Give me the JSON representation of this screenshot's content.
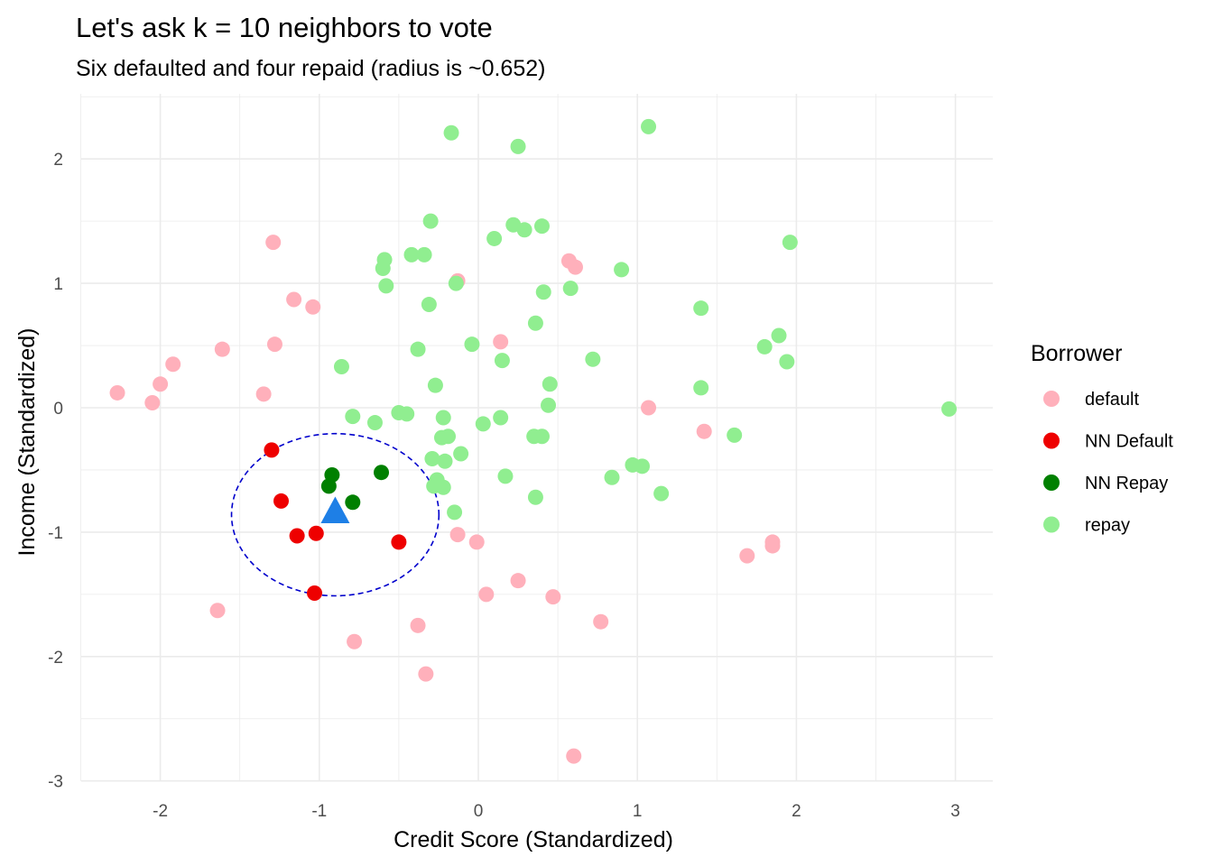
{
  "chart_data": {
    "type": "scatter",
    "title": "Let's ask k = 10 neighbors to vote",
    "subtitle": "Six defaulted and four repaid (radius is ~0.652)",
    "xlabel": "Credit Score (Standardized)",
    "ylabel": "Income (Standardized)",
    "xlim": [
      -2.5,
      3.2
    ],
    "ylim": [
      -3.05,
      2.5
    ],
    "x_ticks": [
      -2,
      -1,
      0,
      1,
      2,
      3
    ],
    "y_ticks": [
      -3,
      -2,
      -1,
      0,
      1,
      2
    ],
    "x_tick_labels": [
      "-2",
      "-1",
      "0",
      "1",
      "2",
      "3"
    ],
    "y_tick_labels": [
      "-3",
      "-2",
      "-1",
      "0",
      "1",
      "2"
    ],
    "grid": true,
    "legend": {
      "title": "Borrower",
      "placement": "right",
      "entries": [
        "default",
        "NN Default",
        "NN Repay",
        "repay"
      ]
    },
    "colors": {
      "default": "#ffb0bb",
      "NN Default": "#ee0000",
      "NN Repay": "#008000",
      "repay": "#90ee90",
      "query": "#1e7fe6",
      "circle": "#0000cc",
      "grid": "#ebebeb"
    },
    "query_point": {
      "x": -0.9,
      "y": -0.83,
      "shape": "triangle"
    },
    "neighborhood_circle": {
      "cx": -0.9,
      "cy": -0.86,
      "radius": 0.652,
      "style": "dashed"
    },
    "series": [
      {
        "name": "default",
        "points": [
          [
            -2.27,
            0.12
          ],
          [
            -2.05,
            0.04
          ],
          [
            -2.0,
            0.19
          ],
          [
            -1.92,
            0.35
          ],
          [
            -1.61,
            0.47
          ],
          [
            -1.64,
            -1.63
          ],
          [
            -1.29,
            1.33
          ],
          [
            -1.28,
            0.51
          ],
          [
            -1.35,
            0.11
          ],
          [
            -1.16,
            0.87
          ],
          [
            -1.04,
            0.81
          ],
          [
            -0.78,
            -1.88
          ],
          [
            -0.38,
            -1.75
          ],
          [
            -0.33,
            -2.14
          ],
          [
            -0.13,
            1.02
          ],
          [
            -0.13,
            -1.02
          ],
          [
            -0.01,
            -1.08
          ],
          [
            0.05,
            -1.5
          ],
          [
            0.14,
            0.53
          ],
          [
            0.25,
            -1.39
          ],
          [
            0.47,
            -1.52
          ],
          [
            0.57,
            1.18
          ],
          [
            0.61,
            1.13
          ],
          [
            0.6,
            -2.8
          ],
          [
            0.77,
            -1.72
          ],
          [
            1.07,
            0.0
          ],
          [
            1.42,
            -0.19
          ],
          [
            1.69,
            -1.19
          ],
          [
            1.85,
            -1.08
          ],
          [
            1.85,
            -1.11
          ]
        ]
      },
      {
        "name": "NN Default",
        "points": [
          [
            -1.3,
            -0.34
          ],
          [
            -1.24,
            -0.75
          ],
          [
            -1.14,
            -1.03
          ],
          [
            -1.02,
            -1.01
          ],
          [
            -1.03,
            -1.49
          ],
          [
            -0.5,
            -1.08
          ]
        ]
      },
      {
        "name": "NN Repay",
        "points": [
          [
            -0.92,
            -0.54
          ],
          [
            -0.94,
            -0.63
          ],
          [
            -0.79,
            -0.76
          ],
          [
            -0.61,
            -0.52
          ]
        ]
      },
      {
        "name": "repay",
        "points": [
          [
            -0.17,
            2.21
          ],
          [
            0.25,
            2.1
          ],
          [
            1.07,
            2.26
          ],
          [
            -0.3,
            1.5
          ],
          [
            0.22,
            1.47
          ],
          [
            0.29,
            1.43
          ],
          [
            0.4,
            1.46
          ],
          [
            0.1,
            1.36
          ],
          [
            -0.42,
            1.23
          ],
          [
            -0.34,
            1.23
          ],
          [
            -0.59,
            1.19
          ],
          [
            -0.6,
            1.12
          ],
          [
            -0.58,
            0.98
          ],
          [
            -0.14,
            1.0
          ],
          [
            0.41,
            0.93
          ],
          [
            0.58,
            0.96
          ],
          [
            0.9,
            1.11
          ],
          [
            1.96,
            1.33
          ],
          [
            -0.31,
            0.83
          ],
          [
            0.36,
            0.68
          ],
          [
            1.4,
            0.8
          ],
          [
            -0.86,
            0.33
          ],
          [
            -0.38,
            0.47
          ],
          [
            -0.04,
            0.51
          ],
          [
            0.15,
            0.38
          ],
          [
            0.72,
            0.39
          ],
          [
            1.8,
            0.49
          ],
          [
            1.89,
            0.58
          ],
          [
            1.94,
            0.37
          ],
          [
            -0.27,
            0.18
          ],
          [
            0.45,
            0.19
          ],
          [
            1.4,
            0.16
          ],
          [
            0.44,
            0.02
          ],
          [
            2.96,
            -0.01
          ],
          [
            -0.79,
            -0.07
          ],
          [
            -0.65,
            -0.12
          ],
          [
            -0.5,
            -0.04
          ],
          [
            -0.45,
            -0.05
          ],
          [
            -0.22,
            -0.08
          ],
          [
            0.03,
            -0.13
          ],
          [
            0.14,
            -0.08
          ],
          [
            -0.23,
            -0.24
          ],
          [
            -0.19,
            -0.23
          ],
          [
            -0.29,
            -0.41
          ],
          [
            -0.21,
            -0.43
          ],
          [
            -0.11,
            -0.37
          ],
          [
            0.35,
            -0.23
          ],
          [
            0.4,
            -0.23
          ],
          [
            1.61,
            -0.22
          ],
          [
            -0.28,
            -0.63
          ],
          [
            -0.26,
            -0.58
          ],
          [
            -0.22,
            -0.64
          ],
          [
            -0.15,
            -0.84
          ],
          [
            0.17,
            -0.55
          ],
          [
            0.36,
            -0.72
          ],
          [
            0.84,
            -0.56
          ],
          [
            0.97,
            -0.46
          ],
          [
            1.03,
            -0.47
          ],
          [
            1.15,
            -0.69
          ]
        ]
      }
    ]
  }
}
